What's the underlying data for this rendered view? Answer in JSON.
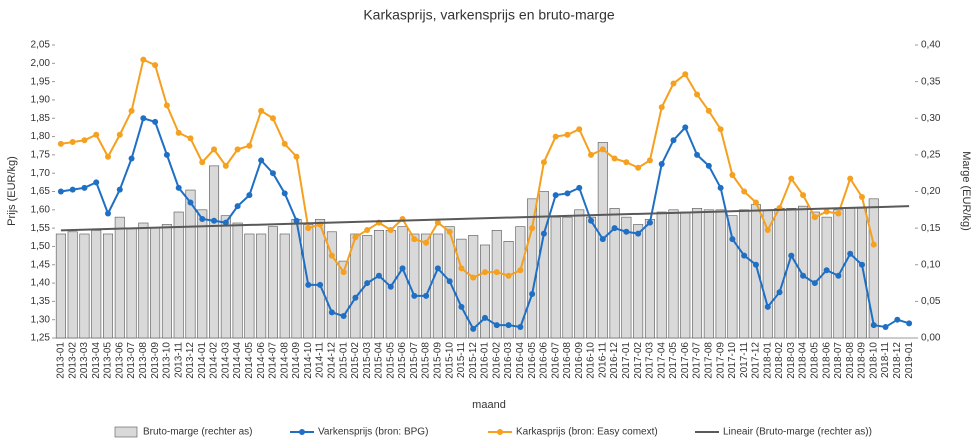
{
  "chart_data": {
    "type": "bar_line",
    "title": "Karkasprijs, varkensprijs en bruto-marge",
    "x_label": "maand",
    "y_label": "Prijs (EUR/kg)",
    "y2_label": "Marge (EUR/kg)",
    "categories": [
      "2013-01",
      "2013-02",
      "2013-03",
      "2013-04",
      "2013-05",
      "2013-06",
      "2013-07",
      "2013-08",
      "2013-09",
      "2013-10",
      "2013-11",
      "2013-12",
      "2014-01",
      "2014-02",
      "2014-03",
      "2014-04",
      "2014-05",
      "2014-06",
      "2014-07",
      "2014-08",
      "2014-09",
      "2014-10",
      "2014-11",
      "2014-12",
      "2015-01",
      "2015-02",
      "2015-03",
      "2015-04",
      "2015-05",
      "2015-06",
      "2015-07",
      "2015-08",
      "2015-09",
      "2015-10",
      "2015-11",
      "2015-12",
      "2016-01",
      "2016-02",
      "2016-03",
      "2016-04",
      "2016-05",
      "2016-06",
      "2016-07",
      "2016-08",
      "2016-09",
      "2016-10",
      "2016-11",
      "2016-12",
      "2017-01",
      "2017-02",
      "2017-03",
      "2017-04",
      "2017-05",
      "2017-06",
      "2017-07",
      "2017-08",
      "2017-09",
      "2017-10",
      "2017-11",
      "2017-12",
      "2018-01",
      "2018-02",
      "2018-03",
      "2018-04",
      "2018-05",
      "2018-06",
      "2018-07",
      "2018-08",
      "2018-09",
      "2018-10",
      "2018-11",
      "2018-12",
      "2019-01"
    ],
    "ylim": [
      1.25,
      2.05
    ],
    "yticks": [
      {
        "value": 1.25,
        "label": "1,25"
      },
      {
        "value": 1.3,
        "label": "1,30"
      },
      {
        "value": 1.35,
        "label": "1,35"
      },
      {
        "value": 1.4,
        "label": "1,40"
      },
      {
        "value": 1.45,
        "label": "1,45"
      },
      {
        "value": 1.5,
        "label": "1,50"
      },
      {
        "value": 1.55,
        "label": "1,55"
      },
      {
        "value": 1.6,
        "label": "1,60"
      },
      {
        "value": 1.65,
        "label": "1,65"
      },
      {
        "value": 1.7,
        "label": "1,70"
      },
      {
        "value": 1.75,
        "label": "1,75"
      },
      {
        "value": 1.8,
        "label": "1,80"
      },
      {
        "value": 1.85,
        "label": "1,85"
      },
      {
        "value": 1.9,
        "label": "1,90"
      },
      {
        "value": 1.95,
        "label": "1,95"
      },
      {
        "value": 2.0,
        "label": "2,00"
      },
      {
        "value": 2.05,
        "label": "2,05"
      }
    ],
    "y2lim": [
      0,
      0.4
    ],
    "y2ticks": [
      {
        "value": 0,
        "label": "0,00"
      },
      {
        "value": 0.05,
        "label": "0,05"
      },
      {
        "value": 0.1,
        "label": "0,10"
      },
      {
        "value": 0.15,
        "label": "0,15"
      },
      {
        "value": 0.2,
        "label": "0,20"
      },
      {
        "value": 0.25,
        "label": "0,25"
      },
      {
        "value": 0.3,
        "label": "0,30"
      },
      {
        "value": 0.35,
        "label": "0,35"
      },
      {
        "value": 0.4,
        "label": "0,40"
      }
    ],
    "legend": "bottom",
    "series": [
      {
        "name": "Bruto-marge (rechter as)",
        "type": "bar",
        "axis": "y2",
        "color": "#d9d9d9",
        "values": [
          0.142,
          0.145,
          0.142,
          0.147,
          0.142,
          0.165,
          0.15,
          0.157,
          0.15,
          0.155,
          0.172,
          0.202,
          0.175,
          0.235,
          0.167,
          0.157,
          0.142,
          0.142,
          0.152,
          0.142,
          0.162,
          0.155,
          0.162,
          0.145,
          0.105,
          0.142,
          0.14,
          0.147,
          0.147,
          0.152,
          0.142,
          0.142,
          0.142,
          0.152,
          0.135,
          0.14,
          0.127,
          0.147,
          0.132,
          0.152,
          0.19,
          0.2,
          0.165,
          0.165,
          0.175,
          0.165,
          0.267,
          0.177,
          0.165,
          0.155,
          0.162,
          0.172,
          0.175,
          0.172,
          0.177,
          0.175,
          0.175,
          0.167,
          0.175,
          0.182,
          0.175,
          0.177,
          0.177,
          0.18,
          0.172,
          0.165,
          0.175,
          0.177,
          0.177,
          0.19,
          null,
          null,
          null
        ]
      },
      {
        "name": "Varkensprijs (bron: BPG)",
        "type": "line",
        "color": "#1f6fc5",
        "values": [
          1.65,
          1.655,
          1.66,
          1.675,
          1.59,
          1.655,
          1.74,
          1.85,
          1.84,
          1.75,
          1.66,
          1.62,
          1.575,
          1.57,
          1.565,
          1.61,
          1.64,
          1.735,
          1.7,
          1.645,
          1.57,
          1.395,
          1.395,
          1.32,
          1.31,
          1.36,
          1.4,
          1.42,
          1.39,
          1.44,
          1.365,
          1.365,
          1.44,
          1.405,
          1.335,
          1.275,
          1.305,
          1.285,
          1.285,
          1.28,
          1.37,
          1.535,
          1.64,
          1.645,
          1.66,
          1.57,
          1.52,
          1.55,
          1.54,
          1.535,
          1.565,
          1.725,
          1.79,
          1.825,
          1.75,
          1.72,
          1.66,
          1.52,
          1.475,
          1.45,
          1.335,
          1.375,
          1.475,
          1.42,
          1.4,
          1.435,
          1.42,
          1.48,
          1.45,
          1.285,
          1.28,
          1.3,
          1.29
        ]
      },
      {
        "name": "Karkasprijs (bron: Easy comext)",
        "type": "line",
        "color": "#f5a01e",
        "values": [
          1.78,
          1.785,
          1.79,
          1.805,
          1.745,
          1.805,
          1.87,
          2.01,
          1.995,
          1.885,
          1.81,
          1.795,
          1.73,
          1.765,
          1.72,
          1.765,
          1.775,
          1.87,
          1.85,
          1.78,
          1.745,
          1.55,
          1.56,
          1.475,
          1.43,
          1.525,
          1.545,
          1.565,
          1.545,
          1.575,
          1.52,
          1.51,
          1.565,
          1.54,
          1.44,
          1.415,
          1.43,
          1.43,
          1.42,
          1.435,
          1.55,
          1.73,
          1.8,
          1.805,
          1.82,
          1.75,
          1.765,
          1.74,
          1.73,
          1.715,
          1.735,
          1.88,
          1.945,
          1.97,
          1.915,
          1.87,
          1.82,
          1.695,
          1.65,
          1.62,
          1.545,
          1.605,
          1.685,
          1.64,
          1.58,
          1.595,
          1.59,
          1.685,
          1.635,
          1.505,
          null,
          null,
          null
        ]
      },
      {
        "name": "Lineair (Bruto-marge (rechter as))",
        "type": "trend",
        "axis": "y2",
        "color": "#595959",
        "x": [
          "2013-01",
          "2019-01"
        ],
        "values": [
          0.147,
          0.18
        ]
      }
    ]
  }
}
